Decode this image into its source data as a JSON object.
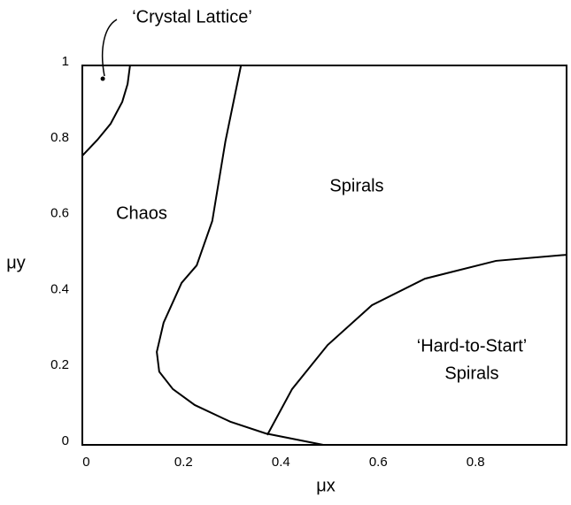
{
  "chart_data": {
    "type": "line",
    "xlabel": "μx",
    "ylabel": "μy",
    "xlim": [
      -0.008,
      0.987
    ],
    "ylim": [
      0,
      1
    ],
    "xticks": [
      0,
      0.2,
      0.4,
      0.6,
      0.8
    ],
    "yticks": [
      0,
      0.2,
      0.4,
      0.6,
      0.8,
      1
    ],
    "grid": false,
    "color": "#000000",
    "series": [
      {
        "x": [
          -0.008,
          0.023,
          0.05,
          0.074,
          0.085,
          0.09
        ],
        "y": [
          0.762,
          0.804,
          0.846,
          0.904,
          0.951,
          1.0
        ]
      },
      {
        "x": [
          0.318,
          0.286,
          0.259,
          0.227,
          0.196,
          0.159,
          0.145,
          0.15,
          0.178,
          0.223,
          0.296,
          0.369,
          0.487
        ],
        "y": [
          1.0,
          0.8,
          0.59,
          0.473,
          0.427,
          0.322,
          0.245,
          0.193,
          0.147,
          0.105,
          0.061,
          0.03,
          0.0
        ]
      },
      {
        "x": [
          0.372,
          0.423,
          0.496,
          0.587,
          0.696,
          0.842,
          0.987
        ],
        "y": [
          0.026,
          0.147,
          0.263,
          0.368,
          0.438,
          0.485,
          0.501
        ]
      }
    ],
    "marker": {
      "x": 0.034,
      "y": 0.965
    },
    "annotations": [
      "‘Crystal Lattice’",
      "Chaos",
      "Spirals",
      "‘Hard-to-Start’",
      "Spirals"
    ]
  }
}
